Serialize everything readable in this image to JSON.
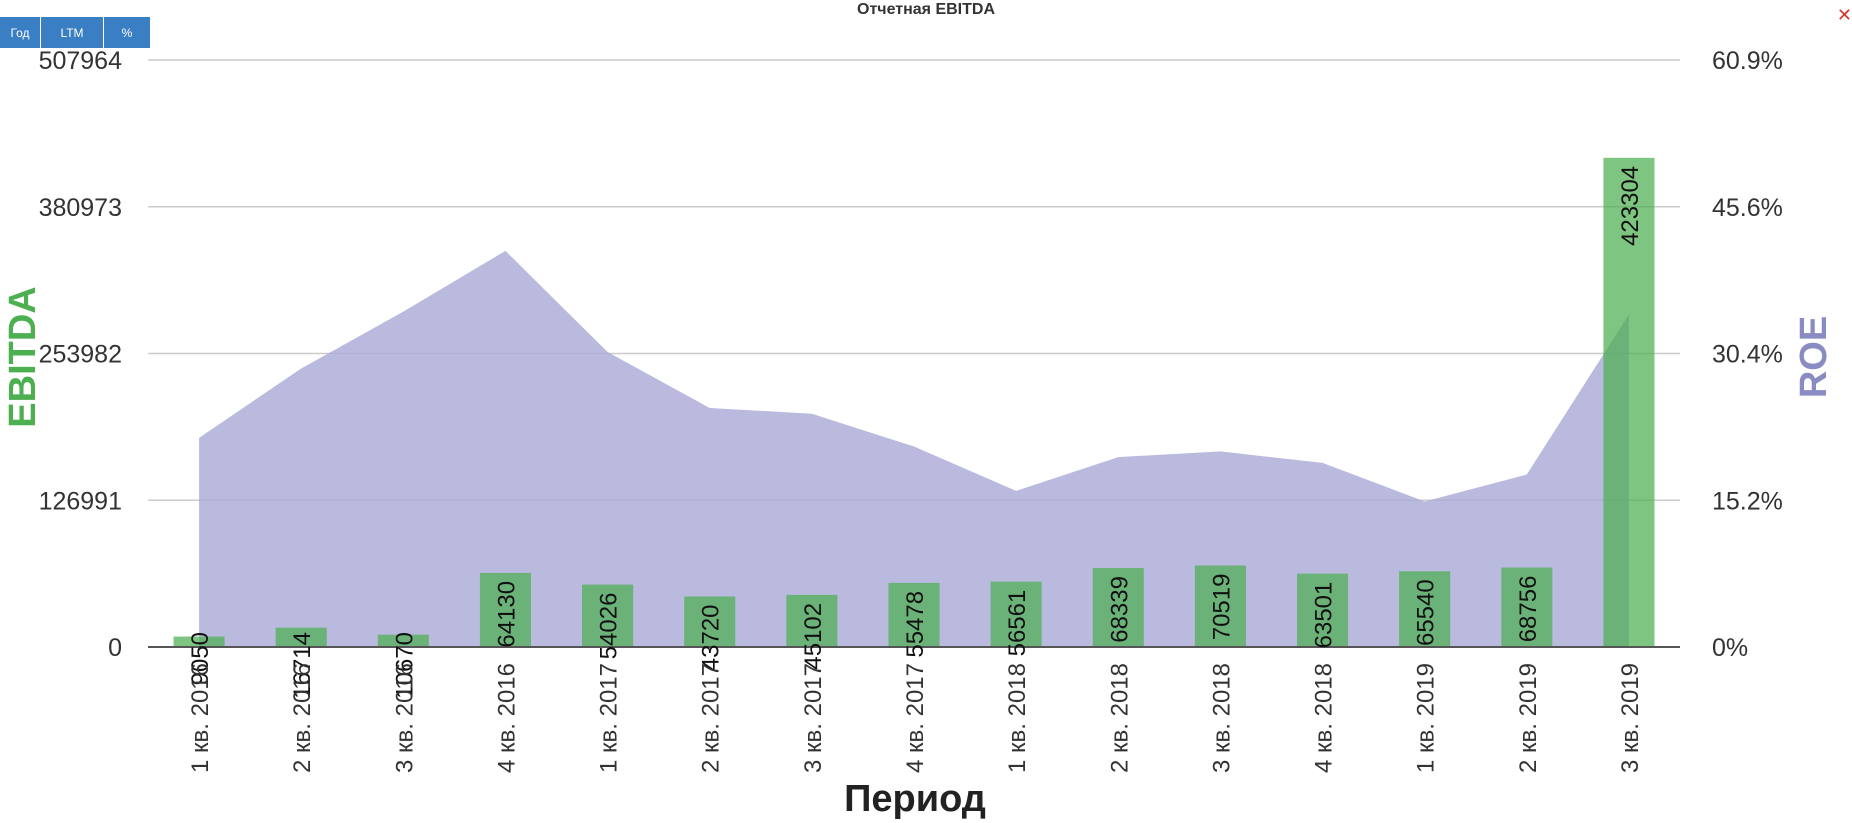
{
  "toolbar": {
    "buttons": [
      "Год",
      "LTM",
      "%"
    ]
  },
  "close_icon": "close-icon",
  "colors": {
    "bar": "#4caf50",
    "area": "#a9a9d6",
    "left_axis_title": "#4caf50",
    "right_axis_title": "#8b8bc4"
  },
  "chart_data": {
    "type": "bar",
    "title": "Отчетная EBITDA",
    "xlabel": "Период",
    "ylabel_left": "EBITDA",
    "ylabel_right": "ROE",
    "categories": [
      "1 кв. 2016",
      "2 кв. 2016",
      "3 кв. 2016",
      "4 кв. 2016",
      "1 кв. 2017",
      "2 кв. 2017",
      "3 кв. 2017",
      "4 кв. 2017",
      "1 кв. 2018",
      "2 кв. 2018",
      "3 кв. 2018",
      "4 кв. 2018",
      "1 кв. 2019",
      "2 кв. 2019",
      "3 кв. 2019"
    ],
    "left_ticks": [
      "0",
      "126991",
      "253982",
      "380973",
      "507964"
    ],
    "right_ticks": [
      "0%",
      "15.2%",
      "30.4%",
      "45.6%",
      "60.9%"
    ],
    "ylim_left": [
      0,
      507964
    ],
    "ylim_right": [
      0,
      60.9
    ],
    "grid": true,
    "series": [
      {
        "name": "EBITDA",
        "type": "bar",
        "axis": "left",
        "values": [
          9050,
          16714,
          10670,
          64130,
          54026,
          43720,
          45102,
          55478,
          56561,
          68339,
          70519,
          63501,
          65540,
          68756,
          423304
        ],
        "labels": [
          "9050",
          "16714",
          "10670",
          "64130",
          "54026",
          "43720",
          "45102",
          "55478",
          "56561",
          "68339",
          "70519",
          "63501",
          "65540",
          "68756",
          "423304"
        ]
      },
      {
        "name": "ROE",
        "type": "area",
        "axis": "right",
        "values": [
          21.7,
          28.9,
          34.8,
          41.1,
          30.6,
          24.8,
          24.2,
          20.8,
          16.2,
          19.7,
          20.3,
          19.1,
          15.1,
          17.9,
          34.5
        ]
      }
    ]
  }
}
